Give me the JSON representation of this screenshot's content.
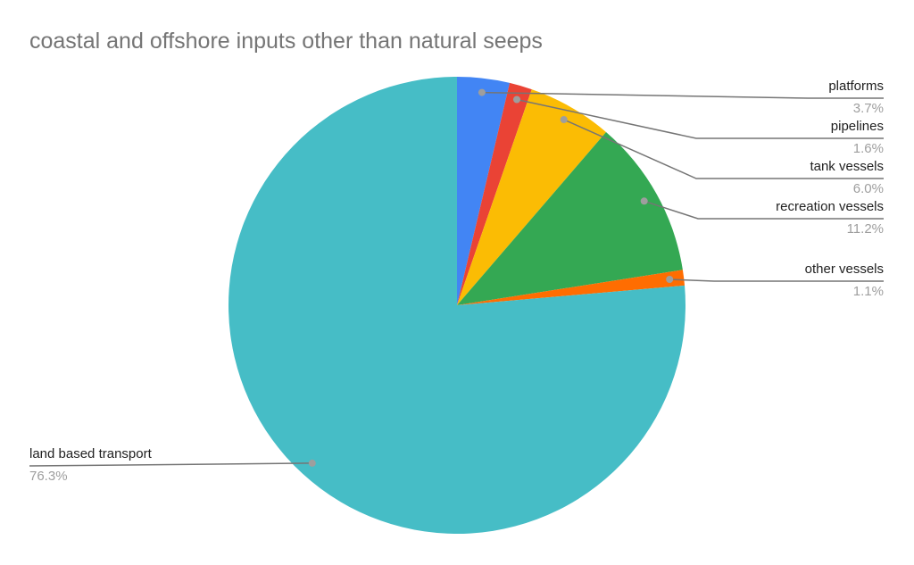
{
  "title": "coastal and offshore inputs other than natural seeps",
  "chart_data": {
    "type": "pie",
    "title": "coastal and offshore inputs other than natural seeps",
    "start_angle_deg": 0,
    "direction": "clockwise",
    "legend_position": "outside-callout-labels",
    "grid": false,
    "slices": [
      {
        "label": "platforms",
        "value_pct": 3.7,
        "display": "3.7%",
        "color": "#4285F4"
      },
      {
        "label": "pipelines",
        "value_pct": 1.6,
        "display": "1.6%",
        "color": "#EA4335"
      },
      {
        "label": "tank vessels",
        "value_pct": 6.0,
        "display": "6.0%",
        "color": "#FBBC04"
      },
      {
        "label": "recreation vessels",
        "value_pct": 11.2,
        "display": "11.2%",
        "color": "#34A853"
      },
      {
        "label": "other vessels",
        "value_pct": 1.1,
        "display": "1.1%",
        "color": "#FF6D01"
      },
      {
        "label": "land based transport",
        "value_pct": 76.3,
        "display": "76.3%",
        "color": "#46BDC6"
      }
    ],
    "text_colors": {
      "title": "#757575",
      "slice_label": "#212121",
      "percent": "#9e9e9e",
      "leader_line": "#757575",
      "leader_dot": "#9e9e9e"
    },
    "background": "#ffffff"
  }
}
